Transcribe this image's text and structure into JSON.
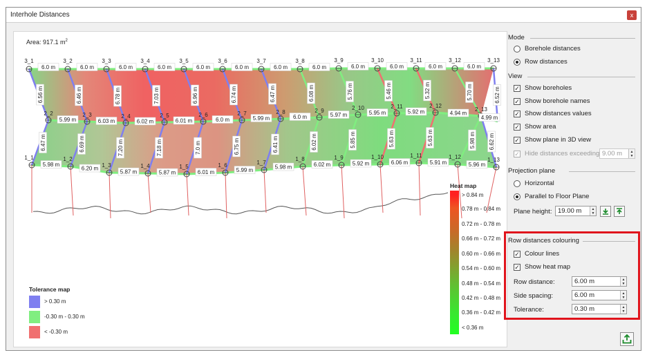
{
  "window": {
    "title": "Interhole Distances",
    "close_label": "x"
  },
  "canvas": {
    "area_prefix": "Area: 917.1 m",
    "area_sup": "2"
  },
  "colors": {
    "in_tolerance": "#80ee80",
    "above_tolerance": "#7f7ff0",
    "below_tolerance": "#f07070",
    "heat_high": "#ff2020",
    "heat_low": "#22ff22",
    "highlight": "#e0141c"
  },
  "boreholes": {
    "row3": [
      "3_1",
      "3_2",
      "3_3",
      "3_4",
      "3_5",
      "3_6",
      "3_7",
      "3_8",
      "3_9",
      "3_10",
      "3_11",
      "3_12",
      "3_13"
    ],
    "row2": [
      "2_2",
      "2_3",
      "2_4",
      "2_5",
      "2_6",
      "2_7",
      "2_8",
      "2_9",
      "2_10",
      "2_11",
      "2_12",
      "2_13"
    ],
    "row1": [
      "1_1",
      "1_2",
      "1_3",
      "1_4",
      "1_5",
      "1_6",
      "1_7",
      "1_8",
      "1_9",
      "1_10",
      "1_11",
      "1_12",
      "1_13"
    ]
  },
  "distances": {
    "row3_side": [
      "6.0 m",
      "6.0 m",
      "6.0 m",
      "6.0 m",
      "6.0 m",
      "6.0 m",
      "6.0 m",
      "6.0 m",
      "6.0 m",
      "6.0 m",
      "6.0 m",
      "6.0 m"
    ],
    "row2_side": [
      "5.99 m",
      "6.03 m",
      "6.02 m",
      "6.01 m",
      "6.0 m",
      "5.99 m",
      "6.0 m",
      "5.97 m",
      "5.95 m",
      "5.92 m",
      "4.94 m",
      "4.99 m"
    ],
    "row1_side": [
      "5.98 m",
      "6.20 m",
      "5.87 m",
      "5.87 m",
      "6.01 m",
      "5.99 m",
      "5.98 m",
      "6.02 m",
      "5.92 m",
      "6.06 m",
      "5.91 m",
      "5.96 m"
    ],
    "upper_row": [
      "6.56 m",
      "6.46 m",
      "6.78 m",
      "7.03 m",
      "6.96 m",
      "6.74 m",
      "6.47 m",
      "6.08 m",
      "5.76 m",
      "5.46 m",
      "5.32 m",
      "5.70 m",
      "6.52 m"
    ],
    "lower_row": [
      "6.47 m",
      "6.69 m",
      "7.20 m",
      "7.18 m",
      "7.0 m",
      "6.75 m",
      "6.41 m",
      "6.02 m",
      "5.85 m",
      "5.63 m",
      "5.63 m",
      "5.98 m",
      "6.62 m"
    ]
  },
  "heat_map": {
    "title": "Heat map",
    "labels": [
      "> 0.84 m",
      "0.78 m - 0.84 m",
      "0.72 m - 0.78 m",
      "0.66 m - 0.72 m",
      "0.60 m - 0.66 m",
      "0.54 m - 0.60 m",
      "0.48 m - 0.54 m",
      "0.42 m - 0.48 m",
      "0.36 m - 0.42 m",
      "< 0.36 m"
    ]
  },
  "tolerance_map": {
    "title": "Tolerance map",
    "items": [
      {
        "label": "> 0.30 m",
        "color": "#7f7ff0"
      },
      {
        "label": "-0.30 m - 0.30 m",
        "color": "#80ee80"
      },
      {
        "label": "< -0.30 m",
        "color": "#f07070"
      }
    ]
  },
  "panel": {
    "mode": {
      "title": "Mode",
      "options": [
        "Borehole distances",
        "Row distances"
      ],
      "selected": 1
    },
    "view": {
      "title": "View",
      "options": [
        "Show boreholes",
        "Show borehole names",
        "Show distances values",
        "Show area",
        "Show plane in 3D view"
      ],
      "hide_label": "Hide distances exceeding",
      "hide_value": "9.00 m"
    },
    "projection": {
      "title": "Projection plane",
      "options": [
        "Horizontal",
        "Parallel to Floor Plane"
      ],
      "selected": 1,
      "plane_height_label": "Plane height:",
      "plane_height_value": "19.00 m"
    },
    "colouring": {
      "title": "Row distances colouring",
      "options": [
        "Colour lines",
        "Show heat map"
      ],
      "row_distance_label": "Row distance:",
      "row_distance_value": "6.00 m",
      "side_spacing_label": "Side spacing:",
      "side_spacing_value": "6.00 m",
      "tolerance_label": "Tolerance:",
      "tolerance_value": "0.30 m"
    }
  }
}
